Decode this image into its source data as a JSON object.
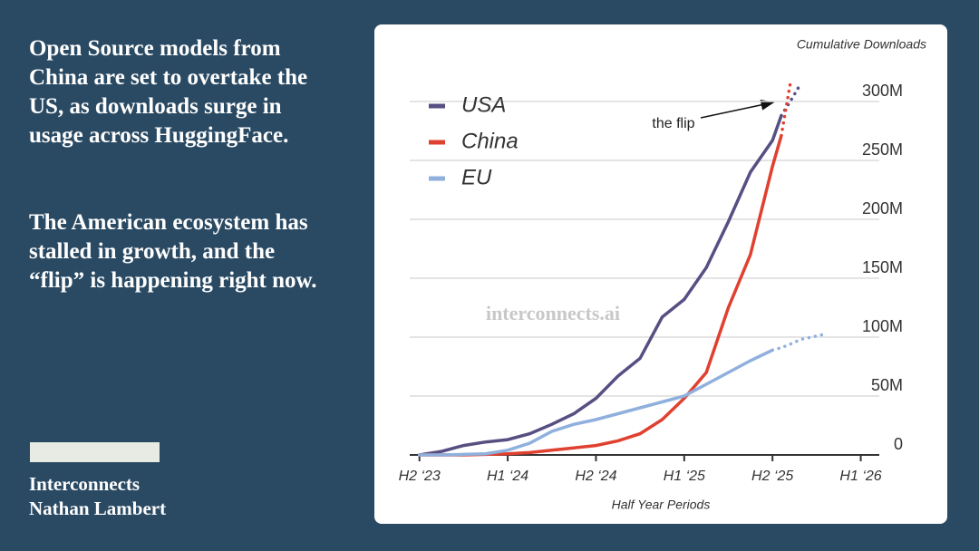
{
  "text": {
    "paragraphs": [
      "Open Source models from China are set to overtake the US, as downloads surge in usage across HuggingFace.",
      "The American ecosystem has stalled in growth, and the “flip” is happening right now."
    ]
  },
  "footer": {
    "lines": [
      "Interconnects",
      "Nathan Lambert"
    ]
  },
  "chart_data": {
    "type": "line",
    "y_label": "Cumulative Downloads",
    "x_label": "Half Year Periods",
    "annotation": "the flip",
    "watermark": "interconnects.ai",
    "x": [
      0,
      0.25,
      0.5,
      0.75,
      1,
      1.25,
      1.5,
      1.75,
      2,
      2.25,
      2.5,
      2.75,
      3,
      3.25,
      3.5,
      3.75,
      4,
      4.1,
      4.2,
      4.32,
      4.62
    ],
    "series": [
      {
        "name": "USA",
        "color": "#574f82",
        "values": [
          0,
          3,
          8,
          11,
          13,
          18,
          26,
          35,
          48,
          67,
          82,
          117,
          132,
          159,
          198,
          240,
          267,
          288,
          null,
          null,
          null
        ],
        "projection": [
          null,
          null,
          null,
          null,
          null,
          null,
          null,
          null,
          null,
          null,
          null,
          null,
          null,
          null,
          null,
          null,
          null,
          288,
          300,
          315,
          null
        ]
      },
      {
        "name": "China",
        "color": "#e0402f",
        "values": [
          0,
          0,
          0,
          0.5,
          1,
          2,
          4,
          6,
          8,
          12,
          18,
          30,
          48,
          70,
          125,
          170,
          245,
          271,
          null,
          null,
          null
        ],
        "projection": [
          null,
          null,
          null,
          null,
          null,
          null,
          null,
          null,
          null,
          null,
          null,
          null,
          null,
          null,
          null,
          null,
          null,
          271,
          315,
          null,
          null
        ]
      },
      {
        "name": "EU",
        "color": "#8fb0dd",
        "values": [
          0,
          0,
          0.5,
          1,
          4,
          10,
          20,
          26,
          30,
          35,
          40,
          45,
          50,
          60,
          70,
          80,
          89,
          null,
          null,
          null,
          null
        ],
        "projection": [
          null,
          null,
          null,
          null,
          null,
          null,
          null,
          null,
          null,
          null,
          null,
          null,
          null,
          null,
          null,
          null,
          89,
          91,
          94,
          98,
          103
        ]
      }
    ],
    "xlim": [
      -0.11,
      5.21
    ],
    "xticks": [
      {
        "value": 0,
        "label": "H2 ‘23"
      },
      {
        "value": 1,
        "label": "H1 ‘24"
      },
      {
        "value": 2,
        "label": "H2 ‘24"
      },
      {
        "value": 3,
        "label": "H1 ‘25"
      },
      {
        "value": 4,
        "label": "H2 ‘25"
      },
      {
        "value": 5,
        "label": "H1 ‘26"
      }
    ],
    "ylim": [
      0,
      320
    ],
    "yticks": [
      0,
      {
        "value": 50,
        "label": "50M"
      },
      {
        "value": 100,
        "label": "100M"
      },
      {
        "value": 150,
        "label": "150M"
      },
      {
        "value": 200,
        "label": "200M"
      },
      {
        "value": 250,
        "label": "250M"
      },
      {
        "value": 300,
        "label": "300M"
      }
    ],
    "grid": true,
    "legend": "upper-left"
  }
}
